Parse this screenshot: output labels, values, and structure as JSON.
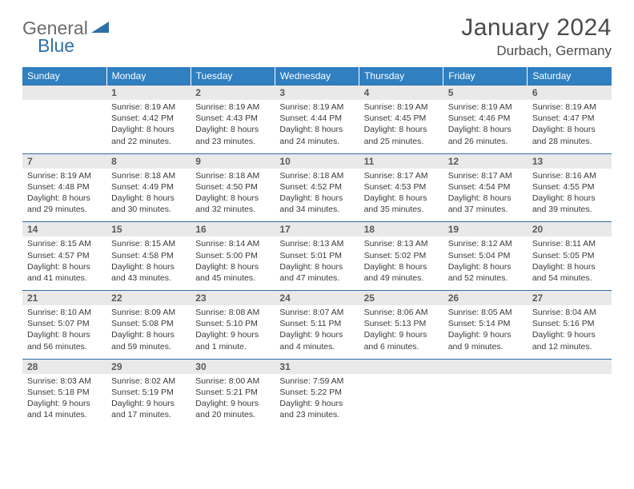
{
  "logo": {
    "word1": "General",
    "word2": "Blue"
  },
  "title": "January 2024",
  "location": "Durbach, Germany",
  "colors": {
    "header_bg": "#2f7fc1",
    "header_text": "#ffffff",
    "daynum_bg": "#e9e9e9",
    "border": "#2f6fa8",
    "text": "#3a3a3a",
    "title_text": "#4a4a4a"
  },
  "day_headers": [
    "Sunday",
    "Monday",
    "Tuesday",
    "Wednesday",
    "Thursday",
    "Friday",
    "Saturday"
  ],
  "weeks": [
    {
      "nums": [
        "",
        "1",
        "2",
        "3",
        "4",
        "5",
        "6"
      ],
      "cells": [
        null,
        {
          "sunrise": "Sunrise: 8:19 AM",
          "sunset": "Sunset: 4:42 PM",
          "d1": "Daylight: 8 hours",
          "d2": "and 22 minutes."
        },
        {
          "sunrise": "Sunrise: 8:19 AM",
          "sunset": "Sunset: 4:43 PM",
          "d1": "Daylight: 8 hours",
          "d2": "and 23 minutes."
        },
        {
          "sunrise": "Sunrise: 8:19 AM",
          "sunset": "Sunset: 4:44 PM",
          "d1": "Daylight: 8 hours",
          "d2": "and 24 minutes."
        },
        {
          "sunrise": "Sunrise: 8:19 AM",
          "sunset": "Sunset: 4:45 PM",
          "d1": "Daylight: 8 hours",
          "d2": "and 25 minutes."
        },
        {
          "sunrise": "Sunrise: 8:19 AM",
          "sunset": "Sunset: 4:46 PM",
          "d1": "Daylight: 8 hours",
          "d2": "and 26 minutes."
        },
        {
          "sunrise": "Sunrise: 8:19 AM",
          "sunset": "Sunset: 4:47 PM",
          "d1": "Daylight: 8 hours",
          "d2": "and 28 minutes."
        }
      ]
    },
    {
      "nums": [
        "7",
        "8",
        "9",
        "10",
        "11",
        "12",
        "13"
      ],
      "cells": [
        {
          "sunrise": "Sunrise: 8:19 AM",
          "sunset": "Sunset: 4:48 PM",
          "d1": "Daylight: 8 hours",
          "d2": "and 29 minutes."
        },
        {
          "sunrise": "Sunrise: 8:18 AM",
          "sunset": "Sunset: 4:49 PM",
          "d1": "Daylight: 8 hours",
          "d2": "and 30 minutes."
        },
        {
          "sunrise": "Sunrise: 8:18 AM",
          "sunset": "Sunset: 4:50 PM",
          "d1": "Daylight: 8 hours",
          "d2": "and 32 minutes."
        },
        {
          "sunrise": "Sunrise: 8:18 AM",
          "sunset": "Sunset: 4:52 PM",
          "d1": "Daylight: 8 hours",
          "d2": "and 34 minutes."
        },
        {
          "sunrise": "Sunrise: 8:17 AM",
          "sunset": "Sunset: 4:53 PM",
          "d1": "Daylight: 8 hours",
          "d2": "and 35 minutes."
        },
        {
          "sunrise": "Sunrise: 8:17 AM",
          "sunset": "Sunset: 4:54 PM",
          "d1": "Daylight: 8 hours",
          "d2": "and 37 minutes."
        },
        {
          "sunrise": "Sunrise: 8:16 AM",
          "sunset": "Sunset: 4:55 PM",
          "d1": "Daylight: 8 hours",
          "d2": "and 39 minutes."
        }
      ]
    },
    {
      "nums": [
        "14",
        "15",
        "16",
        "17",
        "18",
        "19",
        "20"
      ],
      "cells": [
        {
          "sunrise": "Sunrise: 8:15 AM",
          "sunset": "Sunset: 4:57 PM",
          "d1": "Daylight: 8 hours",
          "d2": "and 41 minutes."
        },
        {
          "sunrise": "Sunrise: 8:15 AM",
          "sunset": "Sunset: 4:58 PM",
          "d1": "Daylight: 8 hours",
          "d2": "and 43 minutes."
        },
        {
          "sunrise": "Sunrise: 8:14 AM",
          "sunset": "Sunset: 5:00 PM",
          "d1": "Daylight: 8 hours",
          "d2": "and 45 minutes."
        },
        {
          "sunrise": "Sunrise: 8:13 AM",
          "sunset": "Sunset: 5:01 PM",
          "d1": "Daylight: 8 hours",
          "d2": "and 47 minutes."
        },
        {
          "sunrise": "Sunrise: 8:13 AM",
          "sunset": "Sunset: 5:02 PM",
          "d1": "Daylight: 8 hours",
          "d2": "and 49 minutes."
        },
        {
          "sunrise": "Sunrise: 8:12 AM",
          "sunset": "Sunset: 5:04 PM",
          "d1": "Daylight: 8 hours",
          "d2": "and 52 minutes."
        },
        {
          "sunrise": "Sunrise: 8:11 AM",
          "sunset": "Sunset: 5:05 PM",
          "d1": "Daylight: 8 hours",
          "d2": "and 54 minutes."
        }
      ]
    },
    {
      "nums": [
        "21",
        "22",
        "23",
        "24",
        "25",
        "26",
        "27"
      ],
      "cells": [
        {
          "sunrise": "Sunrise: 8:10 AM",
          "sunset": "Sunset: 5:07 PM",
          "d1": "Daylight: 8 hours",
          "d2": "and 56 minutes."
        },
        {
          "sunrise": "Sunrise: 8:09 AM",
          "sunset": "Sunset: 5:08 PM",
          "d1": "Daylight: 8 hours",
          "d2": "and 59 minutes."
        },
        {
          "sunrise": "Sunrise: 8:08 AM",
          "sunset": "Sunset: 5:10 PM",
          "d1": "Daylight: 9 hours",
          "d2": "and 1 minute."
        },
        {
          "sunrise": "Sunrise: 8:07 AM",
          "sunset": "Sunset: 5:11 PM",
          "d1": "Daylight: 9 hours",
          "d2": "and 4 minutes."
        },
        {
          "sunrise": "Sunrise: 8:06 AM",
          "sunset": "Sunset: 5:13 PM",
          "d1": "Daylight: 9 hours",
          "d2": "and 6 minutes."
        },
        {
          "sunrise": "Sunrise: 8:05 AM",
          "sunset": "Sunset: 5:14 PM",
          "d1": "Daylight: 9 hours",
          "d2": "and 9 minutes."
        },
        {
          "sunrise": "Sunrise: 8:04 AM",
          "sunset": "Sunset: 5:16 PM",
          "d1": "Daylight: 9 hours",
          "d2": "and 12 minutes."
        }
      ]
    },
    {
      "nums": [
        "28",
        "29",
        "30",
        "31",
        "",
        "",
        ""
      ],
      "cells": [
        {
          "sunrise": "Sunrise: 8:03 AM",
          "sunset": "Sunset: 5:18 PM",
          "d1": "Daylight: 9 hours",
          "d2": "and 14 minutes."
        },
        {
          "sunrise": "Sunrise: 8:02 AM",
          "sunset": "Sunset: 5:19 PM",
          "d1": "Daylight: 9 hours",
          "d2": "and 17 minutes."
        },
        {
          "sunrise": "Sunrise: 8:00 AM",
          "sunset": "Sunset: 5:21 PM",
          "d1": "Daylight: 9 hours",
          "d2": "and 20 minutes."
        },
        {
          "sunrise": "Sunrise: 7:59 AM",
          "sunset": "Sunset: 5:22 PM",
          "d1": "Daylight: 9 hours",
          "d2": "and 23 minutes."
        },
        null,
        null,
        null
      ]
    }
  ]
}
